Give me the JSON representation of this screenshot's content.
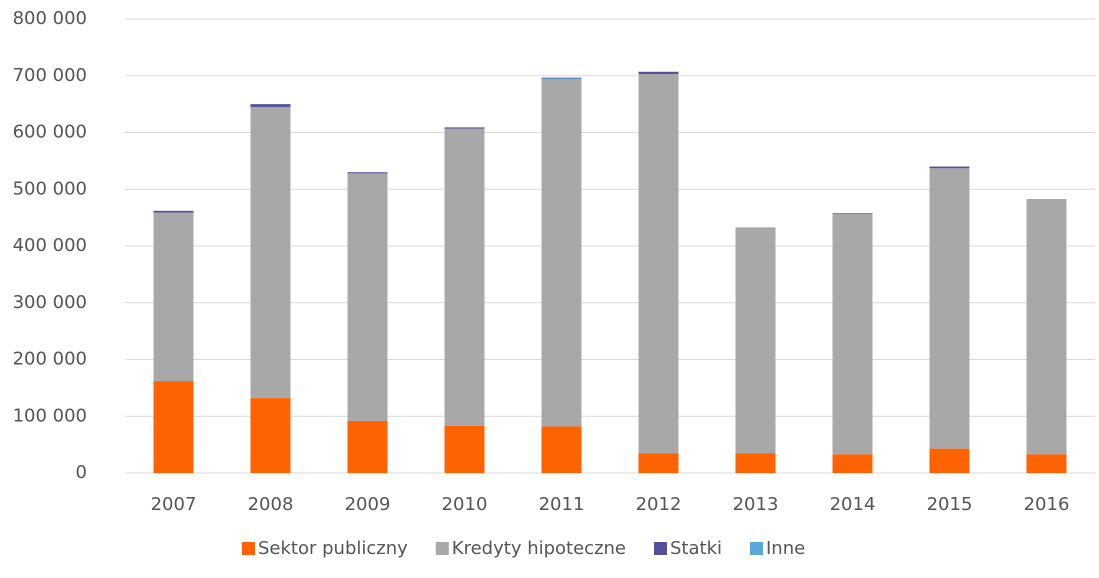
{
  "chart_data": {
    "type": "stacked_bar",
    "categories": [
      "2007",
      "2008",
      "2009",
      "2010",
      "2011",
      "2012",
      "2013",
      "2014",
      "2015",
      "2016"
    ],
    "series": [
      {
        "name": "Sektor publiczny",
        "color": "#ff6200",
        "values": [
          162000,
          132000,
          92000,
          83000,
          82000,
          35000,
          35000,
          33000,
          43000,
          33000
        ]
      },
      {
        "name": "Kredyty hipoteczne",
        "color": "#a8a8a8",
        "values": [
          297000,
          513000,
          436000,
          524000,
          612000,
          668000,
          397000,
          424000,
          494000,
          448000
        ]
      },
      {
        "name": "Statki",
        "color": "#525199",
        "values": [
          3000,
          5000,
          2000,
          2000,
          1000,
          4000,
          500,
          1000,
          3000,
          1000
        ]
      },
      {
        "name": "Inne",
        "color": "#5ba8d8",
        "values": [
          0,
          0,
          0,
          0,
          2000,
          0,
          0,
          0,
          0,
          0
        ]
      }
    ],
    "ylim": [
      0,
      800000
    ],
    "yticks": [
      0,
      {
        "value": 100000,
        "label": "100 000"
      },
      {
        "value": 200000,
        "label": "200 000"
      },
      {
        "value": 300000,
        "label": "300 000"
      },
      {
        "value": 400000,
        "label": "400 000"
      },
      {
        "value": 500000,
        "label": "500 000"
      },
      {
        "value": 600000,
        "label": "600 000"
      },
      {
        "value": 700000,
        "label": "700 000"
      },
      {
        "value": 800000,
        "label": "800 000"
      }
    ],
    "grid": true,
    "legend": "bottom"
  }
}
